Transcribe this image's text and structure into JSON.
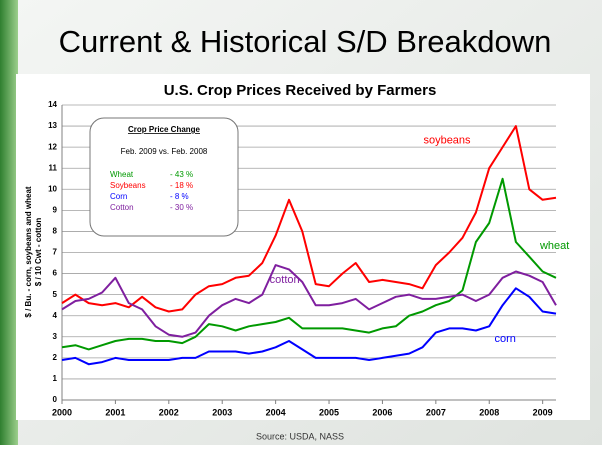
{
  "slide_title": "Current & Historical S/D Breakdown",
  "source": "Source: USDA, NASS",
  "chart_data": {
    "type": "line",
    "title": "U.S. Crop Prices Received by Farmers",
    "y_label": [
      "$ / Bu. - corn, soybeans and wheat",
      "$ / 10 Cwt - cotton"
    ],
    "x": [
      2000,
      2000.25,
      2000.5,
      2000.75,
      2001,
      2001.25,
      2001.5,
      2001.75,
      2002,
      2002.25,
      2002.5,
      2002.75,
      2003,
      2003.25,
      2003.5,
      2003.75,
      2004,
      2004.25,
      2004.5,
      2004.75,
      2005,
      2005.25,
      2005.5,
      2005.75,
      2006,
      2006.25,
      2006.5,
      2006.75,
      2007,
      2007.25,
      2007.5,
      2007.75,
      2008,
      2008.25,
      2008.5,
      2008.75,
      2009,
      2009.25
    ],
    "xlim": [
      2000,
      2009.25
    ],
    "xticks": [
      2000,
      2001,
      2002,
      2003,
      2004,
      2005,
      2006,
      2007,
      2008,
      2009
    ],
    "ylim": [
      0,
      14
    ],
    "yticks": [
      0,
      1,
      2,
      3,
      4,
      5,
      6,
      7,
      8,
      9,
      10,
      11,
      12,
      13,
      14
    ],
    "grid": true,
    "series": [
      {
        "name": "wheat",
        "color": "#009900",
        "values": [
          2.5,
          2.6,
          2.4,
          2.6,
          2.8,
          2.9,
          2.9,
          2.8,
          2.8,
          2.7,
          3.0,
          3.6,
          3.5,
          3.3,
          3.5,
          3.6,
          3.7,
          3.9,
          3.4,
          3.4,
          3.4,
          3.4,
          3.3,
          3.2,
          3.4,
          3.5,
          4.0,
          4.2,
          4.5,
          4.7,
          5.2,
          7.5,
          8.4,
          10.5,
          7.5,
          6.8,
          6.1,
          5.8
        ]
      },
      {
        "name": "soybeans",
        "color": "#ff0000",
        "values": [
          4.6,
          5.0,
          4.6,
          4.5,
          4.6,
          4.4,
          4.9,
          4.4,
          4.2,
          4.3,
          5.0,
          5.4,
          5.5,
          5.8,
          5.9,
          6.5,
          7.8,
          9.5,
          8.0,
          5.5,
          5.4,
          6.0,
          6.5,
          5.6,
          5.7,
          5.6,
          5.5,
          5.3,
          6.4,
          7.0,
          7.7,
          8.9,
          11.0,
          12.0,
          13.0,
          10.0,
          9.5,
          9.6
        ]
      },
      {
        "name": "corn",
        "color": "#0000ff",
        "values": [
          1.9,
          2.0,
          1.7,
          1.8,
          2.0,
          1.9,
          1.9,
          1.9,
          1.9,
          2.0,
          2.0,
          2.3,
          2.3,
          2.3,
          2.2,
          2.3,
          2.5,
          2.8,
          2.4,
          2.0,
          2.0,
          2.0,
          2.0,
          1.9,
          2.0,
          2.1,
          2.2,
          2.5,
          3.2,
          3.4,
          3.4,
          3.3,
          3.5,
          4.5,
          5.3,
          4.9,
          4.2,
          4.1
        ]
      },
      {
        "name": "cotton",
        "color": "#7f1f9f",
        "values": [
          4.3,
          4.7,
          4.8,
          5.1,
          5.8,
          4.6,
          4.3,
          3.5,
          3.1,
          3.0,
          3.2,
          4.0,
          4.5,
          4.8,
          4.6,
          5.0,
          6.4,
          6.2,
          5.6,
          4.5,
          4.5,
          4.6,
          4.8,
          4.3,
          4.6,
          4.9,
          5.0,
          4.8,
          4.8,
          4.9,
          5.0,
          4.7,
          5.0,
          5.8,
          6.1,
          5.9,
          5.6,
          4.5
        ]
      }
    ],
    "price_change": {
      "title": "Crop Price Change",
      "subtitle": "Feb. 2009  vs. Feb. 2008",
      "rows": [
        {
          "name": "Wheat",
          "change": "- 43 %"
        },
        {
          "name": "Soybeans",
          "change": "- 18 %"
        },
        {
          "name": "Corn",
          "change": "-  8 %"
        },
        {
          "name": "Cotton",
          "change": "- 30 %"
        }
      ]
    }
  }
}
